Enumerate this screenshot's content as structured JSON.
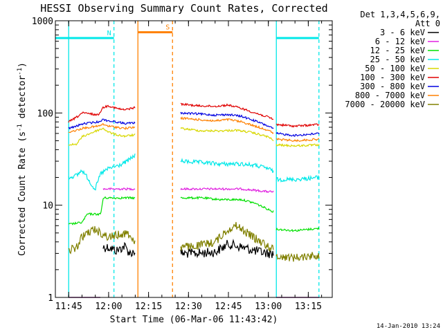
{
  "chart_data": {
    "type": "line",
    "title": "HESSI Observing Summary Count Rates, Corrected",
    "xlabel": "Start Time (06-Mar-06 11:43:42)",
    "ylabel_main": "Corrected Count Rate (s",
    "ylabel_sup1": "-1",
    "ylabel_mid": " detector",
    "ylabel_sup2": "-1",
    "ylabel_end": ")",
    "x_scale": "time",
    "y_scale": "log",
    "xlim": [
      "11:40",
      "13:24"
    ],
    "ylim": [
      1,
      1000
    ],
    "x_ticks": [
      "11:45",
      "12:00",
      "12:15",
      "12:30",
      "12:45",
      "13:00",
      "13:15"
    ],
    "y_ticks": [
      "1",
      "10",
      "100",
      "1000"
    ],
    "legend": {
      "placement": "right",
      "header_line1": "Det 1,3,4,5,6,9,",
      "header_line2": "Att 0",
      "entries": [
        {
          "label": "3 - 6 keV",
          "color": "#000000"
        },
        {
          "label": "6 - 12 keV",
          "color": "#e020e0"
        },
        {
          "label": "12 - 25 keV",
          "color": "#00e000"
        },
        {
          "label": "25 - 50 keV",
          "color": "#00e8e8"
        },
        {
          "label": "50 - 100 keV",
          "color": "#d8d800"
        },
        {
          "label": "100 - 300 keV",
          "color": "#e00000"
        },
        {
          "label": "300 - 800 keV",
          "color": "#0000e0"
        },
        {
          "label": "800 - 7000 keV",
          "color": "#ff8000"
        },
        {
          "label": "7000 - 20000 keV",
          "color": "#808000"
        }
      ]
    },
    "intervals": [
      {
        "label": "N",
        "start": "11:40",
        "end": "12:02",
        "level": 650,
        "color": "#00e8e8"
      },
      {
        "label": "",
        "start": "13:03",
        "end": "13:19",
        "level": 650,
        "color": "#00e8e8"
      },
      {
        "label": "S",
        "start": "12:11",
        "end": "12:24",
        "level": 750,
        "color": "#ff8000"
      }
    ],
    "markers": [
      {
        "time": "11:45",
        "color": "#00e8e8",
        "style": "solid"
      },
      {
        "time": "12:02",
        "color": "#00e8e8",
        "style": "dashed"
      },
      {
        "time": "12:11",
        "color": "#ff8000",
        "style": "solid"
      },
      {
        "time": "12:24",
        "color": "#ff8000",
        "style": "dashed"
      },
      {
        "time": "13:03",
        "color": "#00e8e8",
        "style": "solid"
      },
      {
        "time": "13:19",
        "color": "#00e8e8",
        "style": "dashed"
      }
    ],
    "series": [
      {
        "name": "3 - 6 keV",
        "color": "#000000",
        "segments": [
          {
            "points": [
              [
                "11:45",
                1
              ],
              [
                "11:57",
                1
              ]
            ]
          },
          {
            "points": [
              [
                "11:58",
                3.5
              ],
              [
                "12:00",
                3.5
              ],
              [
                "12:03",
                3.2
              ],
              [
                "12:06",
                3.6
              ],
              [
                "12:08",
                3.0
              ],
              [
                "12:10",
                3.2
              ]
            ]
          },
          {
            "points": [
              [
                "12:27",
                3.0
              ],
              [
                "12:33",
                3.0
              ],
              [
                "12:40",
                3.1
              ],
              [
                "12:45",
                3.8
              ],
              [
                "12:50",
                3.5
              ],
              [
                "12:55",
                3.2
              ],
              [
                "13:00",
                3.0
              ],
              [
                "13:02",
                3.0
              ]
            ]
          },
          {
            "points": [
              [
                "13:03",
                1
              ],
              [
                "13:19",
                1
              ]
            ]
          }
        ]
      },
      {
        "name": "6 - 12 keV",
        "color": "#e020e0",
        "segments": [
          {
            "points": [
              [
                "11:45",
                1
              ],
              [
                "11:57",
                1
              ]
            ]
          },
          {
            "points": [
              [
                "11:58",
                15
              ],
              [
                "12:10",
                15
              ]
            ]
          },
          {
            "points": [
              [
                "12:27",
                15
              ],
              [
                "12:40",
                15
              ],
              [
                "12:50",
                15
              ],
              [
                "13:00",
                14
              ],
              [
                "13:02",
                14
              ]
            ]
          },
          {
            "points": [
              [
                "13:03",
                1
              ],
              [
                "13:19",
                1
              ]
            ]
          }
        ]
      },
      {
        "name": "12 - 25 keV",
        "color": "#00e000",
        "segments": [
          {
            "points": [
              [
                "11:45",
                6.2
              ],
              [
                "11:50",
                6.5
              ],
              [
                "11:52",
                8.0
              ],
              [
                "11:57",
                8.0
              ],
              [
                "11:58",
                12
              ],
              [
                "12:10",
                12
              ]
            ]
          },
          {
            "points": [
              [
                "12:27",
                12
              ],
              [
                "12:35",
                12
              ],
              [
                "12:42",
                11.5
              ],
              [
                "12:50",
                11.5
              ],
              [
                "12:55",
                10.5
              ],
              [
                "13:00",
                9.0
              ],
              [
                "13:02",
                8.5
              ]
            ]
          },
          {
            "points": [
              [
                "13:03",
                5.5
              ],
              [
                "13:10",
                5.3
              ],
              [
                "13:19",
                5.6
              ]
            ]
          }
        ]
      },
      {
        "name": "25 - 50 keV",
        "color": "#00e8e8",
        "segments": [
          {
            "points": [
              [
                "11:45",
                20
              ],
              [
                "11:48",
                21
              ],
              [
                "11:50",
                24
              ],
              [
                "11:52",
                20
              ],
              [
                "11:54",
                16
              ],
              [
                "11:55",
                15
              ],
              [
                "11:57",
                22
              ],
              [
                "12:00",
                25
              ],
              [
                "12:04",
                27
              ],
              [
                "12:07",
                30
              ],
              [
                "12:10",
                35
              ]
            ]
          },
          {
            "points": [
              [
                "12:27",
                30
              ],
              [
                "12:35",
                29
              ],
              [
                "12:42",
                28
              ],
              [
                "12:50",
                28
              ],
              [
                "12:55",
                27
              ],
              [
                "13:00",
                25
              ],
              [
                "13:02",
                23
              ]
            ]
          },
          {
            "points": [
              [
                "13:03",
                19
              ],
              [
                "13:10",
                19
              ],
              [
                "13:19",
                20
              ]
            ]
          }
        ]
      },
      {
        "name": "50 - 100 keV",
        "color": "#d8d800",
        "segments": [
          {
            "points": [
              [
                "11:45",
                45
              ],
              [
                "11:48",
                46
              ],
              [
                "11:50",
                55
              ],
              [
                "11:53",
                60
              ],
              [
                "11:56",
                65
              ],
              [
                "11:58",
                68
              ],
              [
                "12:00",
                62
              ],
              [
                "12:03",
                58
              ],
              [
                "12:06",
                56
              ],
              [
                "12:10",
                58
              ]
            ]
          },
          {
            "points": [
              [
                "12:27",
                68
              ],
              [
                "12:35",
                64
              ],
              [
                "12:42",
                64
              ],
              [
                "12:48",
                65
              ],
              [
                "12:53",
                62
              ],
              [
                "12:57",
                58
              ],
              [
                "13:00",
                55
              ],
              [
                "13:02",
                50
              ]
            ]
          },
          {
            "points": [
              [
                "13:03",
                45
              ],
              [
                "13:10",
                44
              ],
              [
                "13:19",
                45
              ]
            ]
          }
        ]
      },
      {
        "name": "100 - 300 keV",
        "color": "#e00000",
        "segments": [
          {
            "points": [
              [
                "11:45",
                80
              ],
              [
                "11:48",
                90
              ],
              [
                "11:50",
                100
              ],
              [
                "11:53",
                98
              ],
              [
                "11:56",
                95
              ],
              [
                "11:58",
                115
              ],
              [
                "12:00",
                120
              ],
              [
                "12:03",
                112
              ],
              [
                "12:06",
                108
              ],
              [
                "12:10",
                115
              ]
            ]
          },
          {
            "points": [
              [
                "12:27",
                125
              ],
              [
                "12:33",
                120
              ],
              [
                "12:40",
                118
              ],
              [
                "12:45",
                122
              ],
              [
                "12:50",
                112
              ],
              [
                "12:55",
                100
              ],
              [
                "13:00",
                90
              ],
              [
                "13:02",
                85
              ]
            ]
          },
          {
            "points": [
              [
                "13:03",
                75
              ],
              [
                "13:10",
                72
              ],
              [
                "13:19",
                75
              ]
            ]
          }
        ]
      },
      {
        "name": "300 - 800 keV",
        "color": "#0000e0",
        "segments": [
          {
            "points": [
              [
                "11:45",
                68
              ],
              [
                "11:48",
                72
              ],
              [
                "11:50",
                76
              ],
              [
                "11:53",
                78
              ],
              [
                "11:56",
                80
              ],
              [
                "11:58",
                85
              ],
              [
                "12:00",
                82
              ],
              [
                "12:03",
                80
              ],
              [
                "12:06",
                77
              ],
              [
                "12:10",
                78
              ]
            ]
          },
          {
            "points": [
              [
                "12:27",
                100
              ],
              [
                "12:33",
                98
              ],
              [
                "12:40",
                95
              ],
              [
                "12:45",
                96
              ],
              [
                "12:50",
                92
              ],
              [
                "12:55",
                82
              ],
              [
                "13:00",
                72
              ],
              [
                "13:02",
                67
              ]
            ]
          },
          {
            "points": [
              [
                "13:03",
                60
              ],
              [
                "13:10",
                57
              ],
              [
                "13:19",
                60
              ]
            ]
          }
        ]
      },
      {
        "name": "800 - 7000 keV",
        "color": "#ff8000",
        "segments": [
          {
            "points": [
              [
                "11:45",
                62
              ],
              [
                "11:48",
                65
              ],
              [
                "11:50",
                68
              ],
              [
                "11:53",
                70
              ],
              [
                "11:56",
                72
              ],
              [
                "11:58",
                75
              ],
              [
                "12:00",
                72
              ],
              [
                "12:03",
                70
              ],
              [
                "12:06",
                68
              ],
              [
                "12:10",
                70
              ]
            ]
          },
          {
            "points": [
              [
                "12:27",
                88
              ],
              [
                "12:33",
                85
              ],
              [
                "12:40",
                82
              ],
              [
                "12:45",
                85
              ],
              [
                "12:50",
                80
              ],
              [
                "12:55",
                72
              ],
              [
                "13:00",
                65
              ],
              [
                "13:02",
                60
              ]
            ]
          },
          {
            "points": [
              [
                "13:03",
                52
              ],
              [
                "13:10",
                50
              ],
              [
                "13:19",
                52
              ]
            ]
          }
        ]
      },
      {
        "name": "7000 - 20000 keV",
        "color": "#808000",
        "segments": [
          {
            "points": [
              [
                "11:45",
                3.2
              ],
              [
                "11:48",
                3.5
              ],
              [
                "11:50",
                4.5
              ],
              [
                "11:52",
                5.0
              ],
              [
                "11:55",
                5.5
              ],
              [
                "11:57",
                5.0
              ],
              [
                "12:00",
                4.5
              ],
              [
                "12:04",
                4.8
              ],
              [
                "12:07",
                5.0
              ],
              [
                "12:10",
                4.0
              ]
            ]
          },
          {
            "points": [
              [
                "12:27",
                3.5
              ],
              [
                "12:33",
                3.6
              ],
              [
                "12:40",
                4.0
              ],
              [
                "12:45",
                5.5
              ],
              [
                "12:48",
                6.0
              ],
              [
                "12:52",
                5.0
              ],
              [
                "12:56",
                4.2
              ],
              [
                "13:00",
                3.6
              ],
              [
                "13:02",
                3.3
              ]
            ]
          },
          {
            "points": [
              [
                "13:03",
                2.8
              ],
              [
                "13:10",
                2.7
              ],
              [
                "13:19",
                2.9
              ]
            ]
          }
        ]
      }
    ],
    "footer_date": "14-Jan-2010 13:24"
  }
}
